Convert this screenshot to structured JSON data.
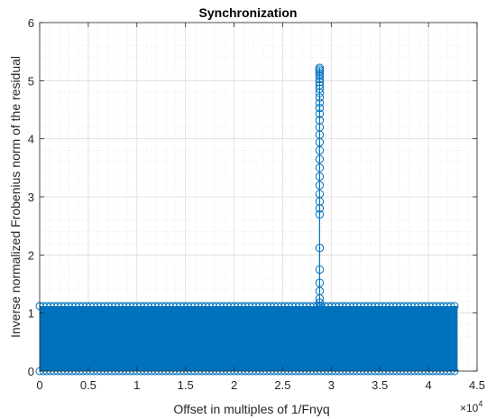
{
  "chart_data": {
    "type": "stem",
    "title": "Synchronization",
    "xlabel": "Offset in multiples of 1/Fnyq",
    "ylabel": "Inverse normalized Frobenius norm of the residual",
    "xlim": [
      0,
      4.5
    ],
    "ylim": [
      0,
      6
    ],
    "x_exponent_label": "×10",
    "x_exponent_power": "4",
    "xticks": [
      "0",
      "0.5",
      "1",
      "1.5",
      "2",
      "2.5",
      "3",
      "3.5",
      "4",
      "4.5"
    ],
    "yticks": [
      "0",
      "1",
      "2",
      "3",
      "4",
      "5",
      "6"
    ],
    "grid": true,
    "minor_grid": true,
    "color": "#0072BD",
    "background": {
      "x_range": [
        0,
        4.3
      ],
      "y_range": [
        0,
        1.12
      ],
      "description_value": "dense stems filling 0 to ~1.12 across x"
    },
    "peak": {
      "x": 2.88,
      "values": [
        5.22,
        5.19,
        5.16,
        5.12,
        5.08,
        5.03,
        4.98,
        4.92,
        4.86,
        4.79,
        4.71,
        4.62,
        4.53,
        4.43,
        4.32,
        4.2,
        4.07,
        3.94,
        3.8,
        3.65,
        3.5,
        3.35,
        3.2,
        3.05,
        2.92,
        2.8,
        2.7,
        2.12,
        1.75,
        1.52,
        1.38,
        1.25,
        1.18,
        1.12
      ]
    }
  }
}
